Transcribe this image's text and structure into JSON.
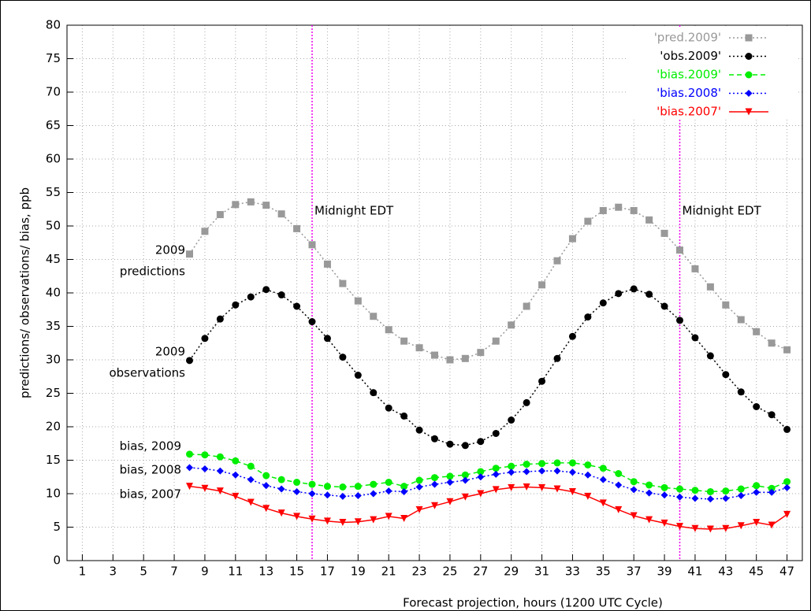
{
  "chart_data": {
    "type": "line",
    "xlabel": "Forecast projection, hours (1200 UTC Cycle)",
    "ylabel": "predictions/ observations/ bias, ppb",
    "xlim": [
      0,
      48
    ],
    "ylim": [
      0,
      80
    ],
    "xticks": [
      1,
      3,
      5,
      7,
      9,
      11,
      13,
      15,
      17,
      19,
      21,
      23,
      25,
      27,
      29,
      31,
      33,
      35,
      37,
      39,
      41,
      43,
      45,
      47
    ],
    "yticks": [
      0,
      5,
      10,
      15,
      20,
      25,
      30,
      35,
      40,
      45,
      50,
      55,
      60,
      65,
      70,
      75,
      80
    ],
    "grid": true,
    "legend": "top-right",
    "x": [
      8,
      9,
      10,
      11,
      12,
      13,
      14,
      15,
      16,
      17,
      18,
      19,
      20,
      21,
      22,
      23,
      24,
      25,
      26,
      27,
      28,
      29,
      30,
      31,
      32,
      33,
      34,
      35,
      36,
      37,
      38,
      39,
      40,
      41,
      42,
      43,
      44,
      45,
      46,
      47
    ],
    "series": [
      {
        "name": "'pred.2009'",
        "color": "#999999",
        "marker": "square",
        "dash": "dotted",
        "values": [
          45.8,
          49.2,
          51.7,
          53.2,
          53.6,
          53.1,
          51.8,
          49.6,
          47.2,
          44.3,
          41.4,
          38.8,
          36.5,
          34.5,
          32.8,
          31.8,
          30.7,
          30.0,
          30.2,
          31.1,
          32.8,
          35.2,
          38.0,
          41.2,
          44.8,
          48.1,
          50.7,
          52.3,
          52.8,
          52.3,
          50.9,
          48.9,
          46.4,
          43.6,
          40.9,
          38.2,
          36.0,
          34.2,
          32.5,
          31.5
        ]
      },
      {
        "name": "'obs.2009'",
        "color": "#000000",
        "marker": "circle",
        "dash": "dotted",
        "values": [
          29.9,
          33.2,
          36.1,
          38.2,
          39.4,
          40.5,
          39.7,
          38.0,
          35.7,
          33.2,
          30.4,
          27.7,
          25.1,
          22.8,
          21.6,
          19.5,
          18.2,
          17.4,
          17.2,
          17.8,
          19.0,
          21.0,
          23.6,
          26.8,
          30.2,
          33.5,
          36.4,
          38.5,
          39.9,
          40.6,
          39.8,
          38.0,
          35.9,
          33.3,
          30.6,
          27.8,
          25.2,
          23.0,
          21.8,
          19.6
        ]
      },
      {
        "name": "'bias.2009'",
        "color": "#00ee00",
        "marker": "circle",
        "dash": "dashed",
        "values": [
          15.9,
          15.8,
          15.5,
          14.9,
          14.1,
          12.7,
          12.1,
          11.7,
          11.4,
          11.1,
          11.0,
          11.1,
          11.4,
          11.7,
          11.1,
          12.0,
          12.4,
          12.6,
          12.8,
          13.3,
          13.8,
          14.1,
          14.4,
          14.5,
          14.6,
          14.6,
          14.3,
          13.8,
          13.0,
          11.8,
          11.3,
          10.9,
          10.7,
          10.5,
          10.3,
          10.4,
          10.7,
          11.2,
          10.8,
          11.8
        ]
      },
      {
        "name": "'bias.2008'",
        "color": "#0000ff",
        "marker": "diamond",
        "dash": "dotted",
        "values": [
          13.9,
          13.7,
          13.4,
          12.8,
          12.1,
          11.2,
          10.7,
          10.3,
          10.0,
          9.8,
          9.6,
          9.7,
          10.0,
          10.4,
          10.3,
          11.0,
          11.4,
          11.7,
          12.0,
          12.5,
          12.9,
          13.2,
          13.3,
          13.4,
          13.4,
          13.2,
          12.8,
          12.1,
          11.3,
          10.6,
          10.1,
          9.8,
          9.5,
          9.3,
          9.2,
          9.3,
          9.7,
          10.2,
          10.2,
          10.9
        ]
      },
      {
        "name": "'bias.2007'",
        "color": "#ff0000",
        "marker": "triangle-down",
        "dash": "solid",
        "values": [
          11.1,
          10.8,
          10.4,
          9.6,
          8.7,
          7.8,
          7.1,
          6.6,
          6.2,
          5.9,
          5.7,
          5.8,
          6.1,
          6.6,
          6.3,
          7.6,
          8.2,
          8.8,
          9.5,
          10.0,
          10.6,
          10.9,
          11.0,
          10.9,
          10.7,
          10.3,
          9.6,
          8.6,
          7.6,
          6.7,
          6.1,
          5.6,
          5.1,
          4.8,
          4.7,
          4.8,
          5.2,
          5.7,
          5.3,
          6.9
        ]
      }
    ],
    "vlines": [
      {
        "x": 16,
        "color": "#ee00ee",
        "label": "Midnight EDT"
      },
      {
        "x": 40,
        "color": "#ee00ee",
        "label": "Midnight EDT"
      }
    ],
    "annotations": [
      {
        "lines": [
          "2009",
          "predictions"
        ]
      },
      {
        "lines": [
          "2009",
          "observations"
        ]
      },
      {
        "lines": [
          "bias, 2009"
        ]
      },
      {
        "lines": [
          "bias, 2008"
        ]
      },
      {
        "lines": [
          "bias, 2007"
        ]
      }
    ]
  }
}
